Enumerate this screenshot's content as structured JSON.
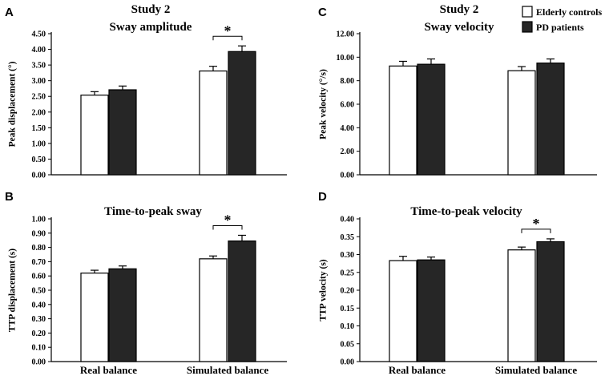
{
  "legend": {
    "items": [
      {
        "label": "Elderly controls",
        "color": "#ffffff"
      },
      {
        "label": "PD patients",
        "color": "#262626"
      }
    ]
  },
  "chart_data": [
    {
      "panel": "A",
      "type": "bar",
      "title": [
        "Study 2",
        "Sway amplitude"
      ],
      "ylabel": "Peak displacement (°)",
      "xlabel": "",
      "ylim": [
        0,
        4.5
      ],
      "yticks": [
        "0.00",
        "0.50",
        "1.00",
        "1.50",
        "2.00",
        "2.50",
        "3.00",
        "3.50",
        "4.00",
        "4.50"
      ],
      "categories": [
        "Real balance",
        "Simulated balance"
      ],
      "series": [
        {
          "name": "Elderly controls",
          "values": [
            2.54,
            3.31
          ],
          "errors": [
            0.11,
            0.15
          ]
        },
        {
          "name": "PD patients",
          "values": [
            2.71,
            3.93
          ],
          "errors": [
            0.12,
            0.18
          ]
        }
      ],
      "significance": [
        {
          "category": "Simulated balance",
          "label": "*"
        }
      ]
    },
    {
      "panel": "C",
      "type": "bar",
      "title": [
        "Study 2",
        "Sway velocity"
      ],
      "ylabel": "Peak velocity (°/s)",
      "xlabel": "",
      "ylim": [
        0,
        12
      ],
      "yticks": [
        "0.00",
        "2.00",
        "4.00",
        "6.00",
        "8.00",
        "10.00",
        "12.00"
      ],
      "categories": [
        "Real balance",
        "Simulated balance"
      ],
      "series": [
        {
          "name": "Elderly controls",
          "values": [
            9.25,
            8.85
          ],
          "errors": [
            0.4,
            0.35
          ]
        },
        {
          "name": "PD patients",
          "values": [
            9.4,
            9.5
          ],
          "errors": [
            0.45,
            0.35
          ]
        }
      ],
      "significance": []
    },
    {
      "panel": "B",
      "type": "bar",
      "title": [
        "Time-to-peak sway"
      ],
      "ylabel": "TTP displacement (s)",
      "xlabel": "",
      "ylim": [
        0,
        1.0
      ],
      "yticks": [
        "0.00",
        "0.10",
        "0.20",
        "0.30",
        "0.40",
        "0.50",
        "0.60",
        "0.70",
        "0.80",
        "0.90",
        "1.00"
      ],
      "categories": [
        "Real balance",
        "Simulated balance"
      ],
      "series": [
        {
          "name": "Elderly controls",
          "values": [
            0.62,
            0.72
          ],
          "errors": [
            0.02,
            0.02
          ]
        },
        {
          "name": "PD patients",
          "values": [
            0.65,
            0.845
          ],
          "errors": [
            0.02,
            0.04
          ]
        }
      ],
      "significance": [
        {
          "category": "Simulated balance",
          "label": "*"
        }
      ]
    },
    {
      "panel": "D",
      "type": "bar",
      "title": [
        "Time-to-peak velocity"
      ],
      "ylabel": "TTP velocity (s)",
      "xlabel": "",
      "ylim": [
        0,
        0.4
      ],
      "yticks": [
        "0.00",
        "0.05",
        "0.10",
        "0.15",
        "0.20",
        "0.25",
        "0.30",
        "0.35",
        "0.40"
      ],
      "categories": [
        "Real balance",
        "Simulated balance"
      ],
      "series": [
        {
          "name": "Elderly controls",
          "values": [
            0.283,
            0.313
          ],
          "errors": [
            0.012,
            0.008
          ]
        },
        {
          "name": "PD patients",
          "values": [
            0.285,
            0.336
          ],
          "errors": [
            0.008,
            0.008
          ]
        }
      ],
      "significance": [
        {
          "category": "Simulated balance",
          "label": "*"
        }
      ]
    }
  ]
}
